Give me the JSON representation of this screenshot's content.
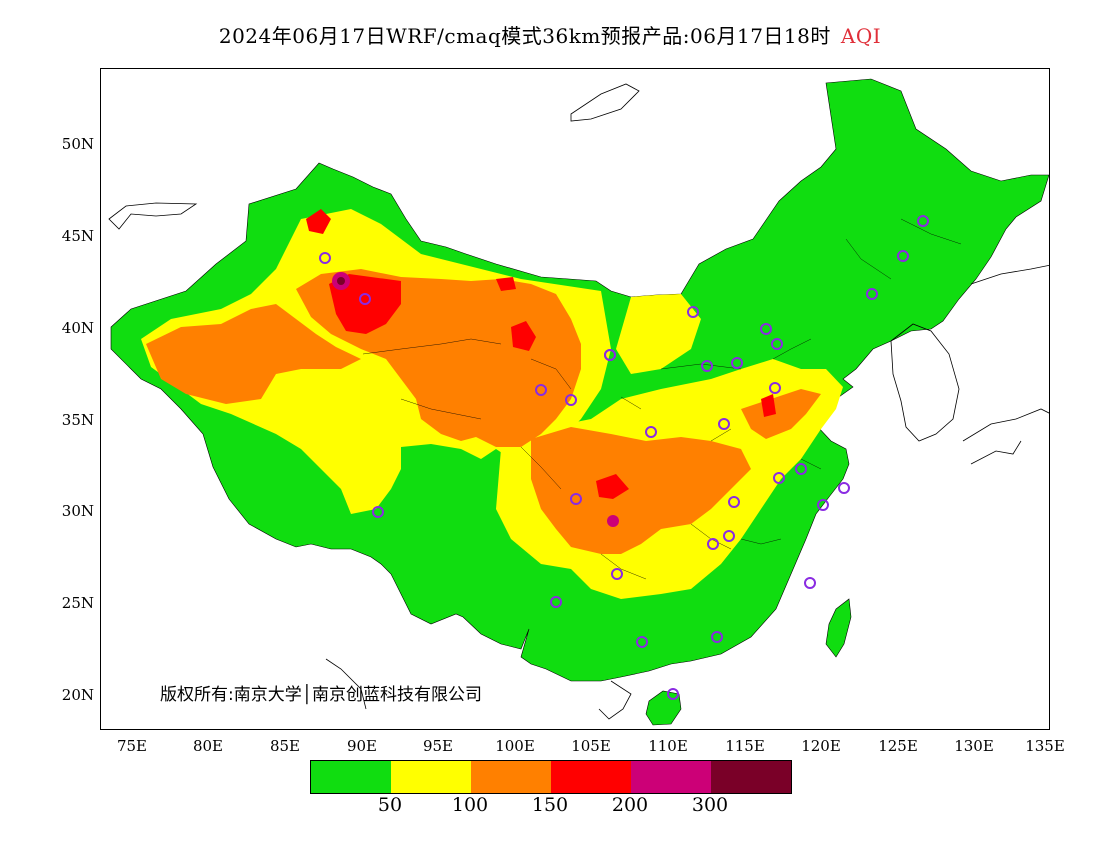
{
  "title": {
    "main": "2024年06月17日WRF/cmaq模式36km预报产品:06月17日18时",
    "highlight": "AQI",
    "highlight_color": "#e0303a"
  },
  "map": {
    "lat_labels": [
      "50N",
      "45N",
      "40N",
      "35N",
      "30N",
      "25N",
      "20N"
    ],
    "lon_labels": [
      "75E",
      "80E",
      "85E",
      "90E",
      "95E",
      "100E",
      "105E",
      "110E",
      "115E",
      "120E",
      "125E",
      "130E",
      "135E"
    ],
    "lon_range": [
      73,
      135
    ],
    "lat_range": [
      18,
      54
    ],
    "copyright": "版权所有:南京大学│南京创蓝科技有限公司",
    "station_marker_color": "#8a2be2"
  },
  "legend": {
    "colors": [
      "#10dd10",
      "#ffff00",
      "#ff8000",
      "#ff0000",
      "#cc0077",
      "#7a0028"
    ],
    "labels": [
      "50",
      "100",
      "150",
      "200",
      "300"
    ]
  }
}
